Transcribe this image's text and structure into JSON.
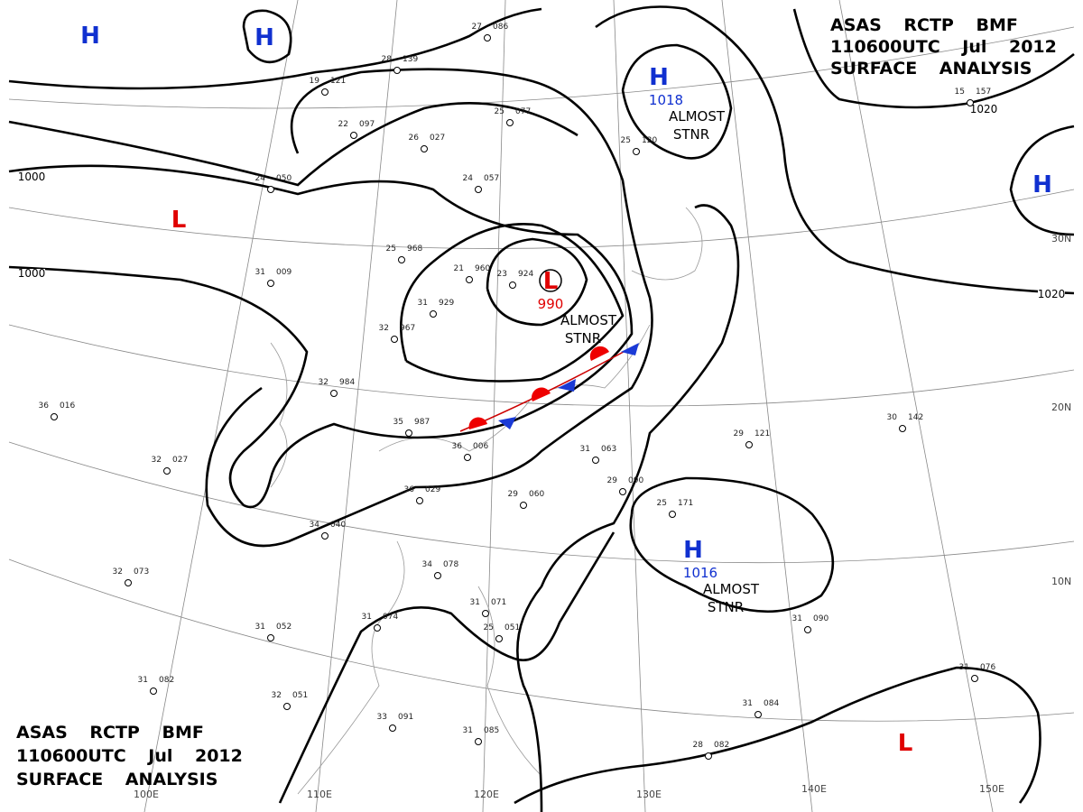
{
  "header_top": [
    "ASAS RCTP BMF",
    "110600UTC Jul 2012",
    "SURFACE ANALYSIS"
  ],
  "header_bottom": [
    "ASAS RCTP BMF",
    "110600UTC Jul 2012",
    "SURFACE ANALYSIS"
  ],
  "pressure_systems": [
    {
      "symbol": "H"
    },
    {
      "symbol": "H"
    },
    {
      "symbol": "H",
      "value": "1018",
      "note": [
        "ALMOST",
        "STNR"
      ]
    },
    {
      "symbol": "L"
    },
    {
      "symbol": "L",
      "value": "990",
      "note": [
        "ALMOST",
        "STNR"
      ]
    },
    {
      "symbol": "H"
    },
    {
      "symbol": "H",
      "value": "1016",
      "note": [
        "ALMOST",
        "STNR"
      ]
    },
    {
      "symbol": "L"
    }
  ],
  "isobar_labels": [
    "1000",
    "1000",
    "1020",
    "1020"
  ],
  "lat_labels": [
    "30N",
    "20N",
    "10N"
  ],
  "lon_labels": [
    "100E",
    "110E",
    "120E",
    "130E",
    "140E",
    "150E"
  ],
  "stations": [
    {
      "t": "27",
      "p": "086"
    },
    {
      "t": "28",
      "p": "139"
    },
    {
      "t": "19",
      "p": "121"
    },
    {
      "t": "25",
      "p": "077"
    },
    {
      "t": "22",
      "p": "097"
    },
    {
      "t": "26",
      "p": "027"
    },
    {
      "t": "24",
      "p": "057"
    },
    {
      "t": "24",
      "p": "050"
    },
    {
      "t": "25",
      "p": "968"
    },
    {
      "t": "21",
      "p": "960"
    },
    {
      "t": "23",
      "p": "924"
    },
    {
      "t": "31",
      "p": "929"
    },
    {
      "t": "31",
      "p": "009"
    },
    {
      "t": "32",
      "p": "967"
    },
    {
      "t": "32",
      "p": "984"
    },
    {
      "t": "36",
      "p": "016"
    },
    {
      "t": "32",
      "p": "027"
    },
    {
      "t": "35",
      "p": "987"
    },
    {
      "t": "36",
      "p": "006"
    },
    {
      "t": "36",
      "p": "029"
    },
    {
      "t": "29",
      "p": "060"
    },
    {
      "t": "31",
      "p": "063"
    },
    {
      "t": "29",
      "p": "090"
    },
    {
      "t": "25",
      "p": "171"
    },
    {
      "t": "29",
      "p": "121"
    },
    {
      "t": "30",
      "p": "142"
    },
    {
      "t": "34",
      "p": "040"
    },
    {
      "t": "34",
      "p": "078"
    },
    {
      "t": "32",
      "p": "073"
    },
    {
      "t": "31",
      "p": "052"
    },
    {
      "t": "31",
      "p": "074"
    },
    {
      "t": "31",
      "p": "071"
    },
    {
      "t": "25",
      "p": "051"
    },
    {
      "t": "31",
      "p": "082"
    },
    {
      "t": "32",
      "p": "051"
    },
    {
      "t": "33",
      "p": "091"
    },
    {
      "t": "31",
      "p": "085"
    },
    {
      "t": "31",
      "p": "090"
    },
    {
      "t": "31",
      "p": "084"
    },
    {
      "t": "28",
      "p": "082"
    },
    {
      "t": "31",
      "p": "076"
    },
    {
      "t": "25",
      "p": "120"
    },
    {
      "t": "15",
      "p": "157"
    }
  ]
}
